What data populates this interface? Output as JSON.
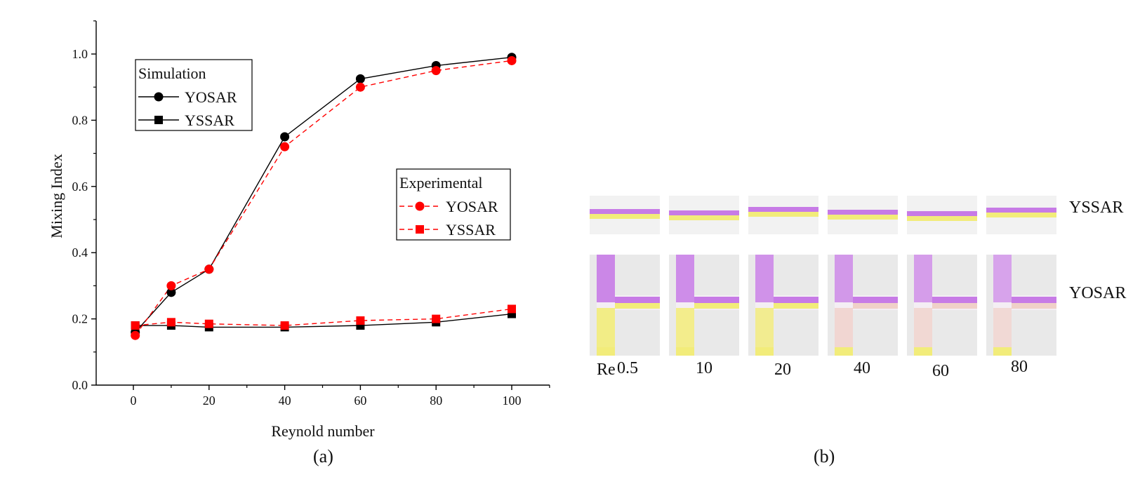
{
  "chart_data": {
    "type": "line",
    "xlabel": "Reynold number",
    "ylabel": "Mixing Index",
    "xlim": [
      -10,
      110
    ],
    "ylim": [
      0,
      1.1
    ],
    "xticks": [
      0,
      20,
      40,
      60,
      80,
      100
    ],
    "yticks": [
      0.0,
      0.2,
      0.4,
      0.6,
      0.8,
      1.0
    ],
    "x": [
      0.5,
      10,
      20,
      40,
      60,
      80,
      100
    ],
    "series": [
      {
        "group": "Simulation",
        "name": "YOSAR",
        "marker": "circle",
        "line": "solid",
        "color": "#000000",
        "values": [
          0.16,
          0.28,
          0.35,
          0.75,
          0.925,
          0.965,
          0.99
        ]
      },
      {
        "group": "Simulation",
        "name": "YSSAR",
        "marker": "square",
        "line": "solid",
        "color": "#000000",
        "values": [
          0.18,
          0.18,
          0.175,
          0.175,
          0.18,
          0.19,
          0.215
        ]
      },
      {
        "group": "Experimental",
        "name": "YOSAR",
        "marker": "circle",
        "line": "dashed",
        "color": "#ff0000",
        "values": [
          0.15,
          0.3,
          0.35,
          0.72,
          0.9,
          0.95,
          0.98
        ]
      },
      {
        "group": "Experimental",
        "name": "YSSAR",
        "marker": "square",
        "line": "dashed",
        "color": "#ff0000",
        "values": [
          0.18,
          0.19,
          0.185,
          0.18,
          0.195,
          0.2,
          0.23
        ]
      }
    ],
    "legends": [
      {
        "title": "Simulation",
        "placement": "top-left"
      },
      {
        "title": "Experimental",
        "placement": "center-right"
      }
    ],
    "grid": false
  },
  "panel_a_caption": "(a)",
  "panel_b_caption": "(b)",
  "panel_b": {
    "row_labels": [
      "YSSAR",
      "YOSAR"
    ],
    "re_label": "Re",
    "re_values": [
      "0.5",
      "10",
      "20",
      "40",
      "60",
      "80"
    ],
    "colors": {
      "purple": "#c77be6",
      "yellow": "#f2ec7a",
      "channel_bg": "#e9e9e9"
    }
  }
}
